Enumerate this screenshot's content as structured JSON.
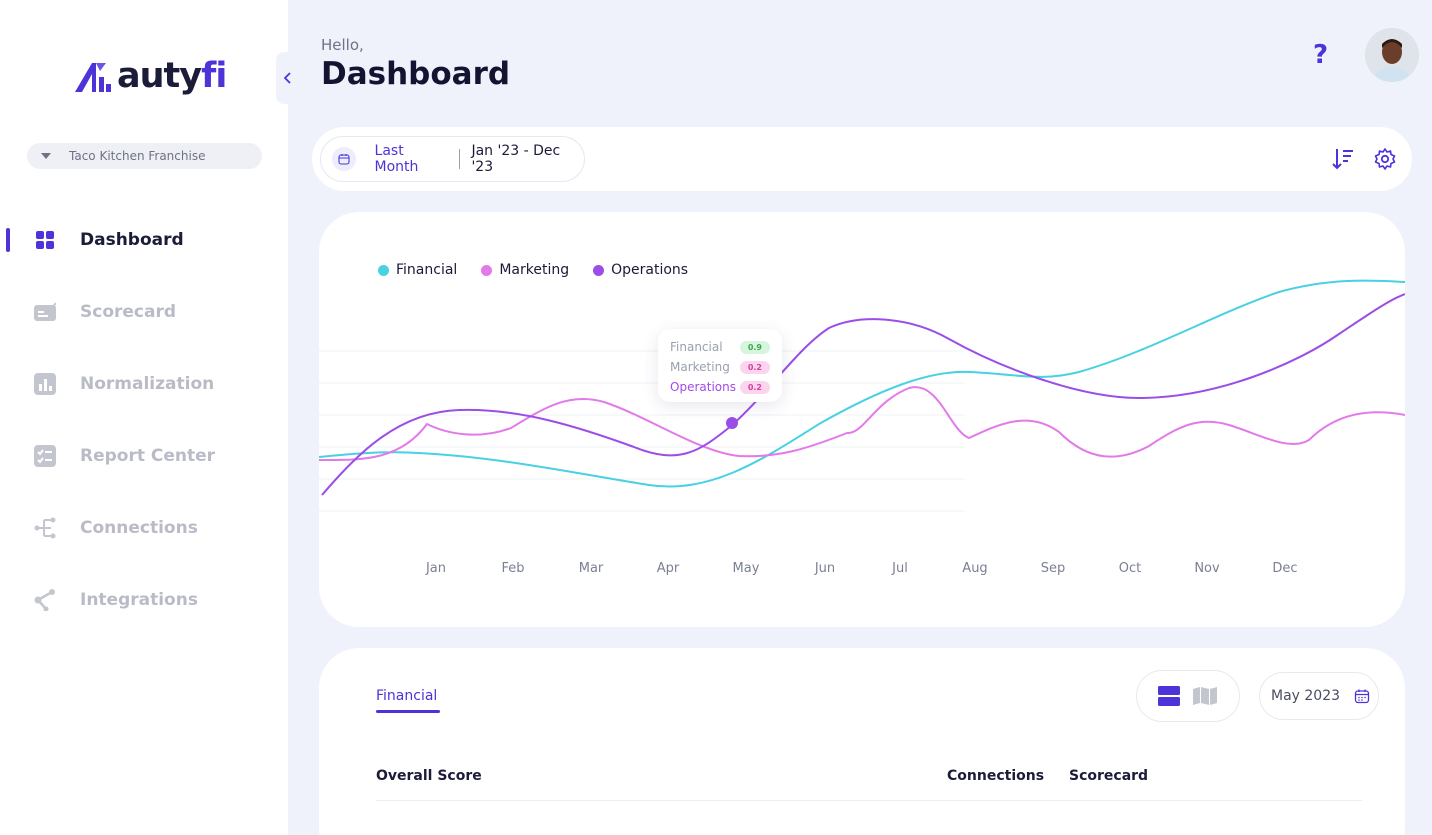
{
  "sidebar": {
    "logo_text_main": "auty",
    "logo_text_accent": "fi",
    "franchise": "Taco Kitchen Franchise",
    "items": [
      {
        "label": "Dashboard",
        "icon": "grid-icon",
        "active": true
      },
      {
        "label": "Scorecard",
        "icon": "scorecard-icon",
        "active": false
      },
      {
        "label": "Normalization",
        "icon": "bar-chart-icon",
        "active": false
      },
      {
        "label": "Report Center",
        "icon": "checklist-icon",
        "active": false
      },
      {
        "label": "Connections",
        "icon": "branch-icon",
        "active": false
      },
      {
        "label": "Integrations",
        "icon": "share-icon",
        "active": false
      }
    ]
  },
  "header": {
    "greeting": "Hello,",
    "title": "Dashboard",
    "help": "?"
  },
  "filter": {
    "period": "Last Month",
    "range": "Jan '23 - Dec '23"
  },
  "chart_data": {
    "type": "line",
    "categories": [
      "Jan",
      "Feb",
      "Mar",
      "Apr",
      "May",
      "Jun",
      "Jul",
      "Aug",
      "Sep",
      "Oct",
      "Nov",
      "Dec"
    ],
    "series": [
      {
        "name": "Financial",
        "color": "#48d1e2"
      },
      {
        "name": "Marketing",
        "color": "#e27ae9"
      },
      {
        "name": "Operations",
        "color": "#9b4de6"
      }
    ],
    "legend": "top-left",
    "tooltip": {
      "rows": [
        {
          "label": "Financial",
          "value": "0.9"
        },
        {
          "label": "Marketing",
          "value": "0.2"
        },
        {
          "label": "Operations",
          "value": "0.2"
        }
      ]
    }
  },
  "table": {
    "tab": "Financial",
    "month": "May 2023",
    "columns": [
      "Overall Score",
      "Connections",
      "Scorecard"
    ]
  },
  "colors": {
    "accent": "#4d34d8",
    "background": "#f0f2fb"
  }
}
